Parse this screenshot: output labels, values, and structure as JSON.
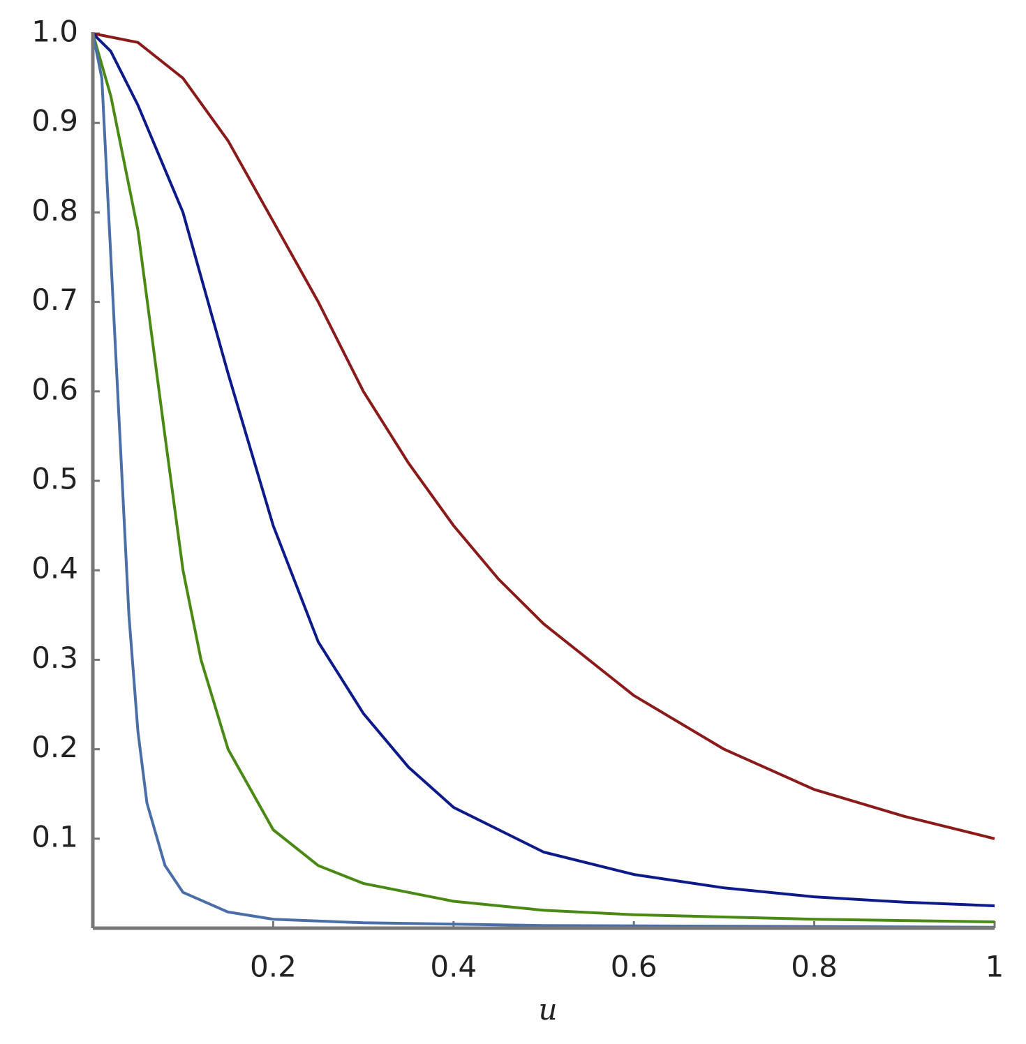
{
  "chart_data": {
    "type": "line",
    "x_label": "u",
    "xlim": [
      0,
      1
    ],
    "ylim": [
      0,
      1
    ],
    "xticks": [
      0.2,
      0.4,
      0.6,
      0.8,
      1
    ],
    "yticks": [
      0.1,
      0.2,
      0.3,
      0.4,
      0.5,
      0.6,
      0.7,
      0.8,
      0.9,
      {
        "value": 1,
        "label": "1.0"
      }
    ],
    "series": [
      {
        "color": "#8b1a1a",
        "x": [
          0,
          0.05,
          0.1,
          0.15,
          0.2,
          0.25,
          0.3,
          0.35,
          0.4,
          0.45,
          0.5,
          0.6,
          0.7,
          0.8,
          0.9,
          1
        ],
        "values": [
          1,
          0.99,
          0.95,
          0.88,
          0.79,
          0.7,
          0.6,
          0.52,
          0.45,
          0.39,
          0.34,
          0.26,
          0.2,
          0.155,
          0.125,
          0.1
        ]
      },
      {
        "color": "#0d1a8a",
        "x": [
          0,
          0.02,
          0.05,
          0.1,
          0.15,
          0.2,
          0.25,
          0.3,
          0.35,
          0.4,
          0.5,
          0.6,
          0.7,
          0.8,
          0.9,
          1
        ],
        "values": [
          1,
          0.98,
          0.92,
          0.8,
          0.62,
          0.45,
          0.32,
          0.24,
          0.18,
          0.135,
          0.085,
          0.06,
          0.045,
          0.035,
          0.029,
          0.025
        ]
      },
      {
        "color": "#4a8a14",
        "x": [
          0,
          0.02,
          0.05,
          0.08,
          0.1,
          0.12,
          0.15,
          0.2,
          0.25,
          0.3,
          0.4,
          0.5,
          0.6,
          0.8,
          1
        ],
        "values": [
          1,
          0.93,
          0.78,
          0.55,
          0.4,
          0.3,
          0.2,
          0.11,
          0.07,
          0.05,
          0.03,
          0.02,
          0.015,
          0.01,
          0.007
        ]
      },
      {
        "color": "#4a6fa8",
        "x": [
          0,
          0.01,
          0.02,
          0.03,
          0.04,
          0.05,
          0.06,
          0.08,
          0.1,
          0.15,
          0.2,
          0.3,
          0.5,
          1
        ],
        "values": [
          1,
          0.95,
          0.75,
          0.55,
          0.35,
          0.22,
          0.14,
          0.07,
          0.04,
          0.018,
          0.01,
          0.006,
          0.003,
          0.001
        ]
      }
    ]
  }
}
